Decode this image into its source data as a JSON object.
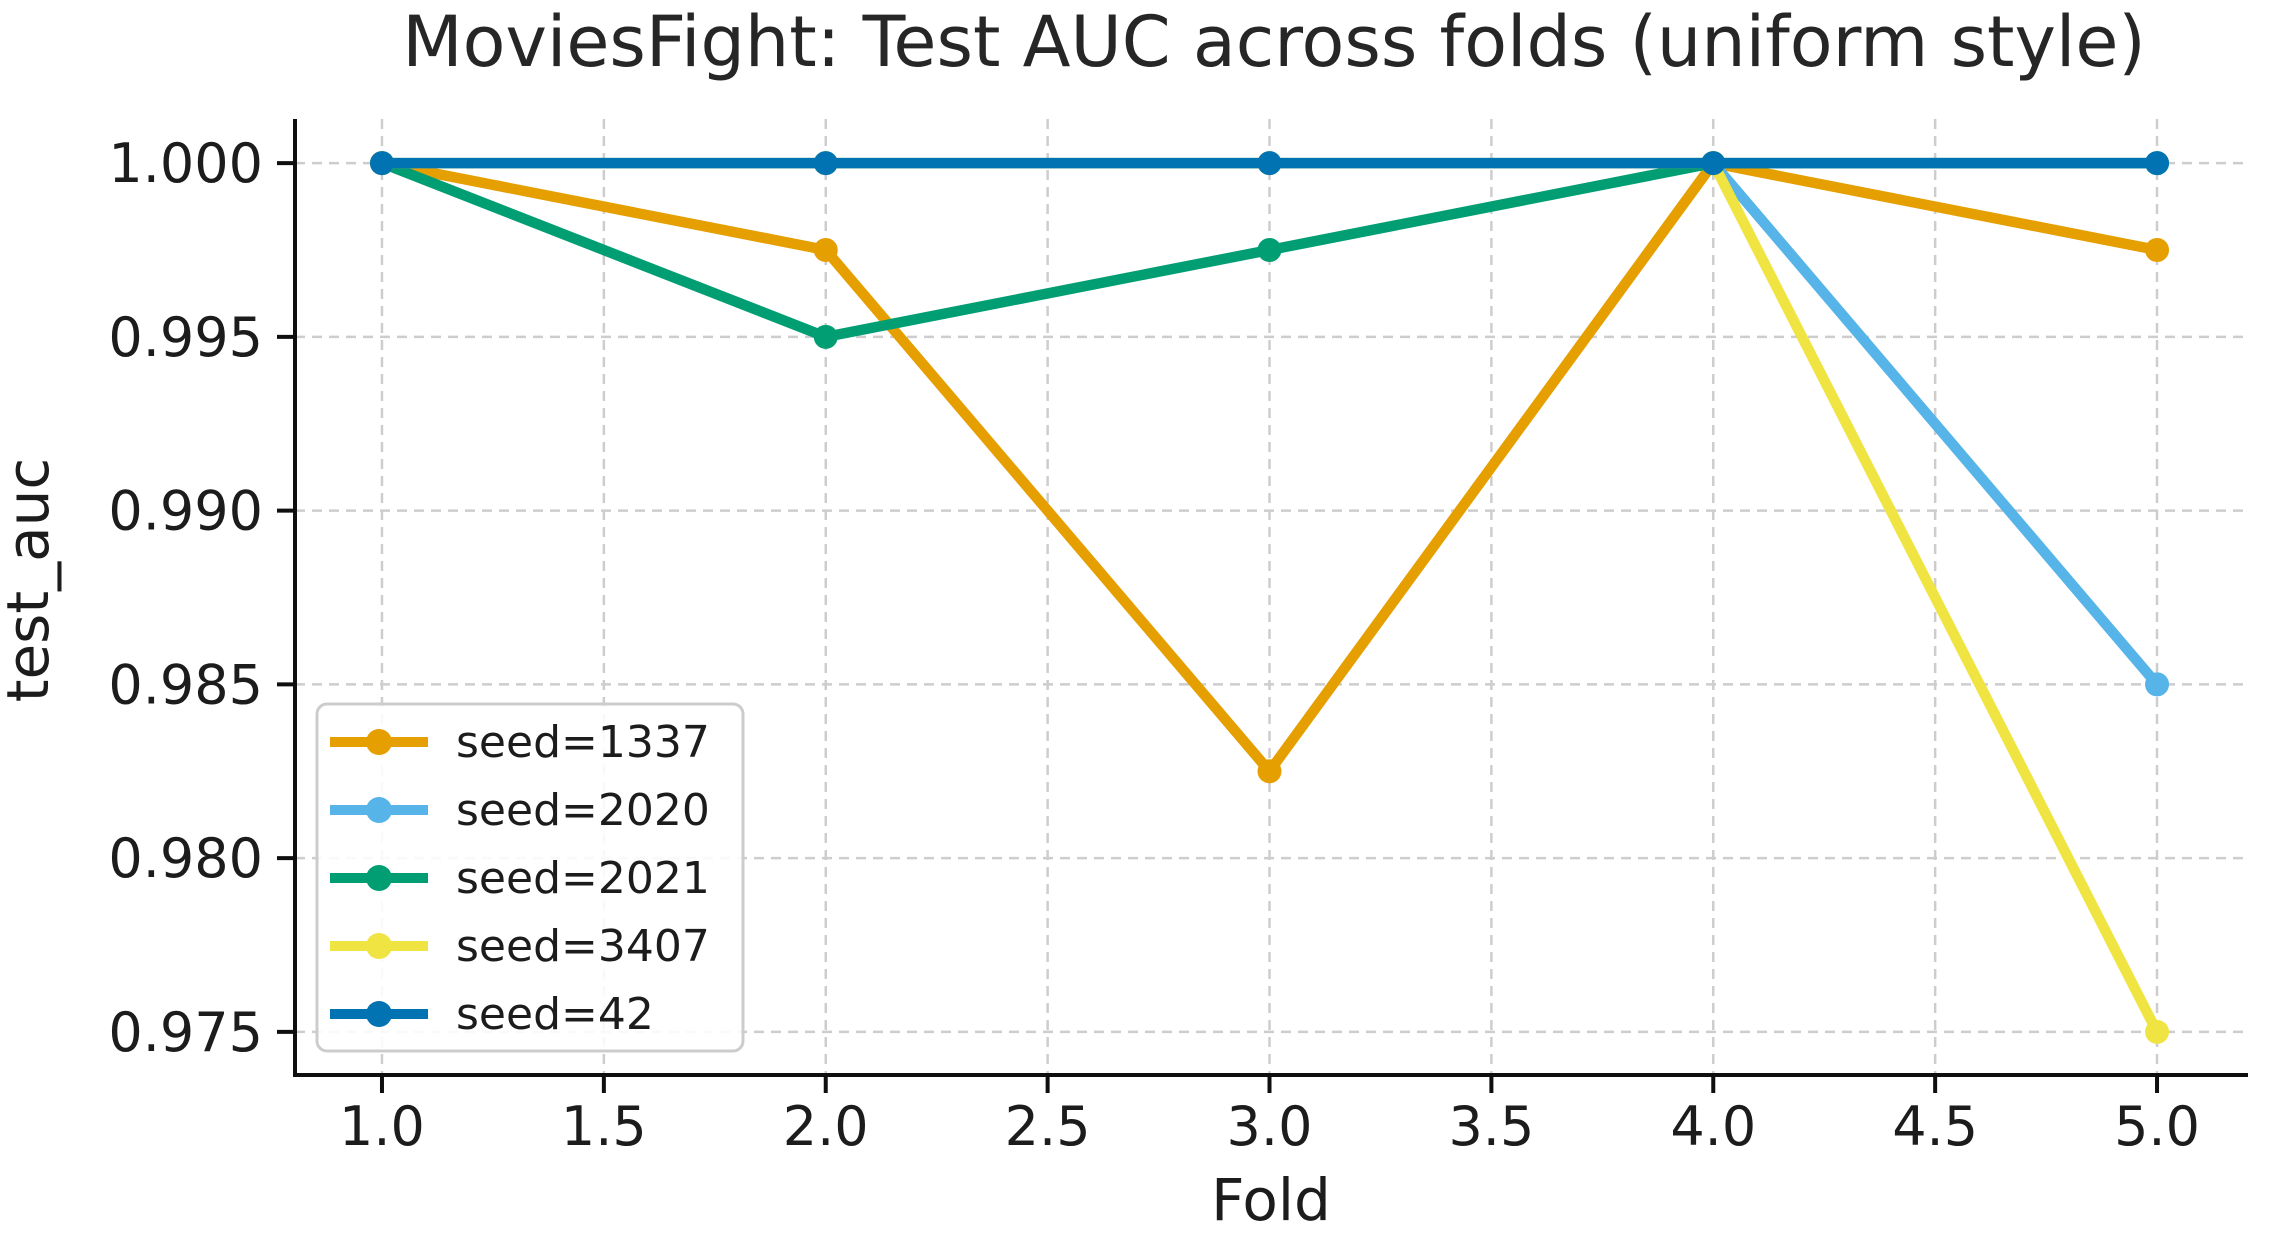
{
  "chart_data": {
    "type": "line",
    "title": "MoviesFight: Test AUC across folds (uniform style)",
    "xlabel": "Fold",
    "ylabel": "test_auc",
    "x": [
      1,
      2,
      3,
      4,
      5
    ],
    "series": [
      {
        "name": "seed=1337",
        "color": "#E69F00",
        "values": [
          1.0,
          0.9975,
          0.9825,
          1.0,
          0.9975
        ]
      },
      {
        "name": "seed=2020",
        "color": "#56B4E9",
        "values": [
          1.0,
          1.0,
          1.0,
          1.0,
          0.985
        ]
      },
      {
        "name": "seed=2021",
        "color": "#029E73",
        "values": [
          1.0,
          0.995,
          0.9975,
          1.0,
          1.0
        ]
      },
      {
        "name": "seed=3407",
        "color": "#F0E442",
        "values": [
          1.0,
          1.0,
          1.0,
          1.0,
          0.975
        ]
      },
      {
        "name": "seed=42",
        "color": "#0173B2",
        "values": [
          1.0,
          1.0,
          1.0,
          1.0,
          1.0
        ]
      }
    ],
    "xticks": {
      "values": [
        1.0,
        1.5,
        2.0,
        2.5,
        3.0,
        3.5,
        4.0,
        4.5,
        5.0
      ],
      "labels": [
        "1.0",
        "1.5",
        "2.0",
        "2.5",
        "3.0",
        "3.5",
        "4.0",
        "4.5",
        "5.0"
      ]
    },
    "yticks": {
      "values": [
        1.0,
        0.995,
        0.99,
        0.985,
        0.98,
        0.975
      ],
      "labels": [
        "1.000",
        "0.995",
        "0.990",
        "0.985",
        "0.980",
        "0.975"
      ]
    },
    "xlim": [
      0.804,
      5.205
    ],
    "ylim": [
      0.97376,
      1.00127
    ],
    "grid": {
      "visible": true,
      "style": "dashed",
      "color": "#cdcdcd"
    },
    "legend": {
      "position": "lower-left",
      "entries": [
        "seed=1337",
        "seed=2020",
        "seed=2021",
        "seed=3407",
        "seed=42"
      ]
    },
    "style_colors": {
      "spine": "#0f0f0f",
      "text": "#1c1c1c",
      "legend_border": "#cccccc"
    }
  }
}
